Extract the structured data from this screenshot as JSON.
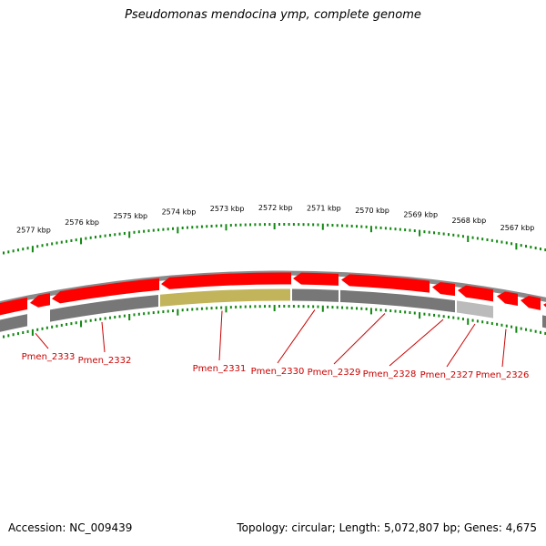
{
  "title": "Pseudomonas mendocina ymp, complete genome",
  "footer": {
    "accession": "Accession: NC_009439",
    "topology": "Topology: circular; Length: 5,072,807 bp; Genes: 4,675"
  },
  "map": {
    "colors": {
      "forward_gene": "#ff0000",
      "reverse_gene": "#777777",
      "highlight_gene": "#c2b45a",
      "light_gene": "#bbbbbb",
      "ticks": "#118811",
      "backbone": "#8a8a8a",
      "label": "#cc0000"
    },
    "scale_labels": [
      "2577 kbp",
      "2576 kbp",
      "2575 kbp",
      "2574 kbp",
      "2573 kbp",
      "2572 kbp",
      "2571 kbp",
      "2570 kbp",
      "2569 kbp",
      "2568 kbp",
      "2567 kbp"
    ],
    "gene_labels": [
      "Pmen_2333",
      "Pmen_2332",
      "Pmen_2331",
      "Pmen_2330",
      "Pmen_2329",
      "Pmen_2328",
      "Pmen_2327",
      "Pmen_2326"
    ]
  }
}
